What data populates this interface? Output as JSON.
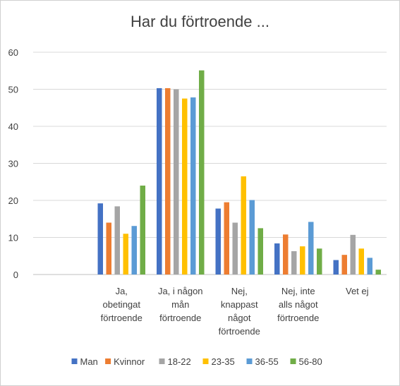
{
  "chart_data": {
    "type": "bar",
    "title": "Har du förtroende ...",
    "xlabel": "",
    "ylabel": "",
    "ylim": [
      0,
      60
    ],
    "yticks": [
      0,
      10,
      20,
      30,
      40,
      50,
      60
    ],
    "grid": true,
    "legend": "bottom",
    "categories": [
      [
        "",
        ""
      ],
      [
        "Ja,",
        "obetingat",
        "förtroende"
      ],
      [
        "Ja, i någon",
        "mån",
        "förtroende"
      ],
      [
        "Nej,",
        "knappast",
        "något",
        "förtroende"
      ],
      [
        "Nej, inte",
        "alls något",
        "förtroende"
      ],
      [
        "Vet ej"
      ]
    ],
    "series": [
      {
        "name": "Man",
        "color": "#4472C4",
        "values": [
          null,
          19.2,
          50.3,
          17.8,
          8.4,
          3.9
        ]
      },
      {
        "name": "Kvinnor",
        "color": "#ED7D31",
        "values": [
          null,
          14.0,
          50.3,
          19.5,
          10.8,
          5.3
        ]
      },
      {
        "name": "18-22",
        "color": "#A5A5A5",
        "values": [
          null,
          18.4,
          50.0,
          14.0,
          6.3,
          10.7
        ]
      },
      {
        "name": "23-35",
        "color": "#FFC000",
        "values": [
          null,
          11.0,
          47.5,
          26.5,
          7.6,
          7.0
        ]
      },
      {
        "name": "36-55",
        "color": "#5B9BD5",
        "values": [
          null,
          13.1,
          47.8,
          20.1,
          14.2,
          4.5
        ]
      },
      {
        "name": "56-80",
        "color": "#70AD47",
        "values": [
          null,
          24.0,
          55.1,
          12.5,
          7.0,
          1.3
        ]
      }
    ]
  }
}
